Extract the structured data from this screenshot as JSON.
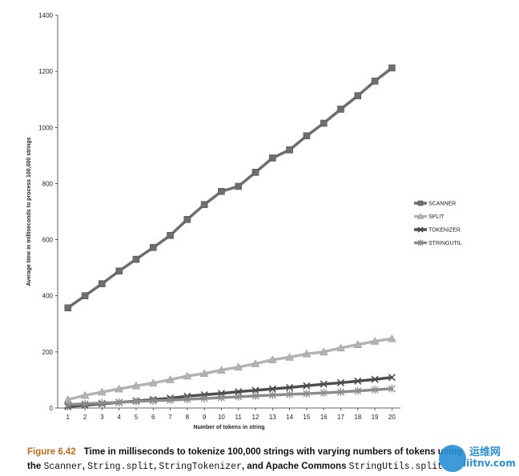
{
  "chart_data": {
    "type": "line",
    "title": "",
    "xlabel": "Number of tokens in string",
    "ylabel": "Average time in milliseconds to process 100,000 strings",
    "x": [
      1,
      2,
      3,
      4,
      5,
      6,
      7,
      8,
      9,
      10,
      11,
      12,
      13,
      14,
      15,
      16,
      17,
      18,
      19,
      20
    ],
    "ylim": [
      0,
      1400
    ],
    "yticks": [
      0,
      200,
      400,
      600,
      800,
      1000,
      1200,
      1400
    ],
    "grid": false,
    "legend_position": "right",
    "series": [
      {
        "name": "SCANNER",
        "marker": "square",
        "color": "#6e6e6e",
        "values": [
          357,
          400,
          443,
          488,
          530,
          572,
          615,
          672,
          725,
          772,
          790,
          840,
          891,
          920,
          970,
          1015,
          1065,
          1113,
          1165,
          1212
        ]
      },
      {
        "name": "SPLIT",
        "marker": "triangle",
        "color": "#b3b3b3",
        "values": [
          30,
          45,
          57,
          68,
          79,
          89,
          101,
          114,
          123,
          135,
          146,
          158,
          172,
          181,
          193,
          200,
          214,
          226,
          238,
          247
        ]
      },
      {
        "name": "TOKENIZER",
        "marker": "x",
        "color": "#4d4d4d",
        "values": [
          5,
          10,
          15,
          20,
          25,
          30,
          35,
          42,
          47,
          52,
          58,
          63,
          68,
          73,
          79,
          85,
          90,
          96,
          102,
          109
        ]
      },
      {
        "name": "STRINGUTIL",
        "marker": "asterisk",
        "color": "#8c8c8c",
        "values": [
          12,
          15,
          18,
          20,
          23,
          26,
          28,
          31,
          34,
          37,
          40,
          43,
          46,
          49,
          51,
          54,
          57,
          61,
          65,
          69
        ]
      }
    ]
  },
  "caption": {
    "label": "Figure 6.42",
    "line1": "Time in milliseconds to tokenize 100,000 strings with varying numbers of tokens using",
    "line2_prefix": "the ",
    "line2_code1": "Scanner",
    "line2_sep1": ", ",
    "line2_code2": "String.split",
    "line2_sep2": ", ",
    "line2_code3": "StringTokenizer",
    "line2_sep3": ", and Apache Commons ",
    "line2_code4": "StringUtils.split"
  },
  "watermark": {
    "text1": "运维网",
    "text2": "iiitnv.com"
  }
}
